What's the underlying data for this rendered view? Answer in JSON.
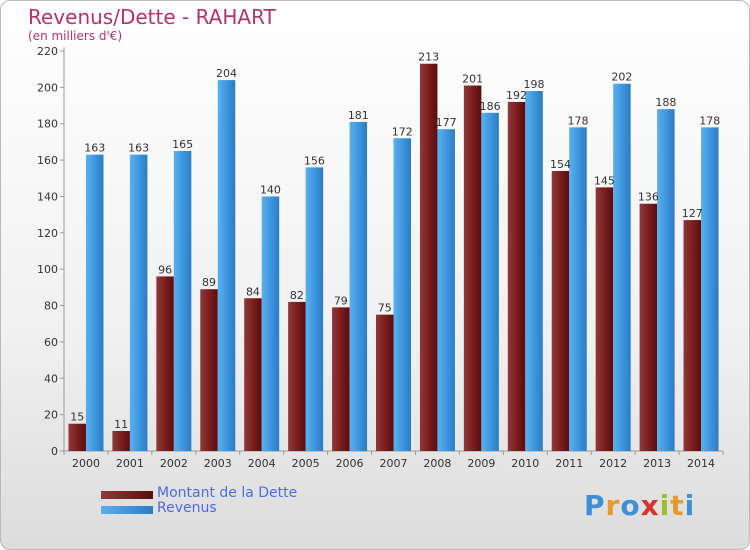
{
  "title": "Revenus/Dette - RAHART",
  "subtitle": "(en milliers d'€)",
  "logo": {
    "text": "Proxiti",
    "letters": [
      {
        "ch": "P",
        "color": "#3f8fd6"
      },
      {
        "ch": "r",
        "color": "#e79a2a"
      },
      {
        "ch": "o",
        "color": "#3f8fd6"
      },
      {
        "ch": "x",
        "color": "#d6332a"
      },
      {
        "ch": "i",
        "color": "#9bbf2f"
      },
      {
        "ch": "t",
        "color": "#e79a2a"
      },
      {
        "ch": "i",
        "color": "#3f8fd6"
      }
    ]
  },
  "colors": {
    "debt": "#7a1e1e",
    "revenue": "#3f97df",
    "title": "#b3326f",
    "legend_text": "#4d6ce6"
  },
  "chart_data": {
    "type": "bar",
    "title": "Revenus/Dette - RAHART",
    "subtitle": "(en milliers d'€)",
    "categories": [
      "2000",
      "2001",
      "2002",
      "2003",
      "2004",
      "2005",
      "2006",
      "2007",
      "2008",
      "2009",
      "2010",
      "2011",
      "2012",
      "2013",
      "2014"
    ],
    "series": [
      {
        "name": "Montant de la Dette",
        "values": [
          15,
          11,
          96,
          89,
          84,
          82,
          79,
          75,
          213,
          201,
          192,
          154,
          145,
          136,
          127
        ]
      },
      {
        "name": "Revenus",
        "values": [
          163,
          163,
          165,
          204,
          140,
          156,
          181,
          172,
          177,
          186,
          198,
          178,
          202,
          188,
          178
        ]
      }
    ],
    "ylim": [
      0,
      220
    ],
    "yticks": [
      0,
      20,
      40,
      60,
      80,
      100,
      120,
      140,
      160,
      180,
      200,
      220
    ],
    "grid": false,
    "legend_position": "bottom-left"
  }
}
